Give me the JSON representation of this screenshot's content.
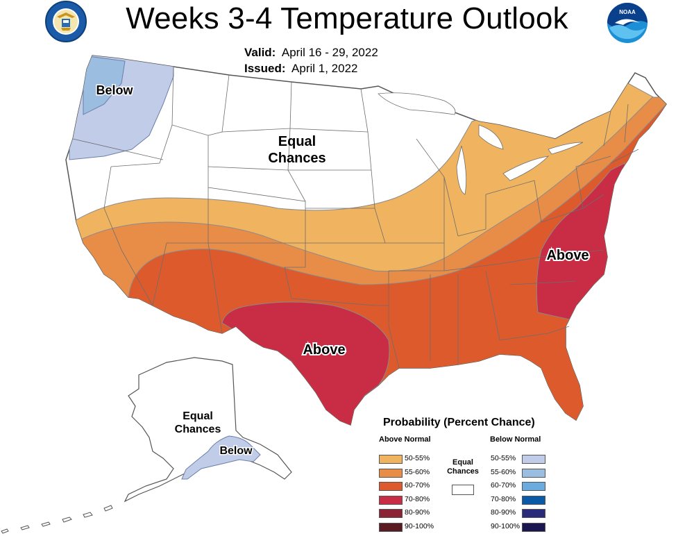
{
  "header": {
    "title": "Weeks 3-4 Temperature Outlook",
    "valid_label": "Valid:",
    "valid_value": "April 16 - 29, 2022",
    "issued_label": "Issued:",
    "issued_value": "April 1, 2022"
  },
  "logos": {
    "doc": "doc-seal-icon",
    "noaa_text": "NOAA"
  },
  "map_labels": {
    "below_nw": "Below",
    "equal_chances_conus_1": "Equal",
    "equal_chances_conus_2": "Chances",
    "above_east": "Above",
    "above_texas": "Above",
    "equal_chances_ak_1": "Equal",
    "equal_chances_ak_2": "Chances",
    "below_ak": "Below"
  },
  "colors": {
    "above_50_55": "#f0b35f",
    "above_55_60": "#e88d48",
    "above_60_70": "#dd5a2c",
    "above_70_80": "#c92c45",
    "above_80_90": "#8b2335",
    "above_90_100": "#5a1a22",
    "below_50_55": "#c1cde8",
    "below_55_60": "#9bbde0",
    "below_60_70": "#6aacdf",
    "below_70_80": "#0a5aa8",
    "below_80_90": "#2a2a7a",
    "below_90_100": "#1b1650"
  },
  "legend": {
    "title": "Probability (Percent Chance)",
    "above_header": "Above Normal",
    "below_header": "Below Normal",
    "equal_chances_1": "Equal",
    "equal_chances_2": "Chances",
    "above_rows": [
      "50-55%",
      "55-60%",
      "60-70%",
      "70-80%",
      "80-90%",
      "90-100%"
    ],
    "below_rows": [
      "50-55%",
      "55-60%",
      "60-70%",
      "70-80%",
      "80-90%",
      "90-100%"
    ]
  }
}
